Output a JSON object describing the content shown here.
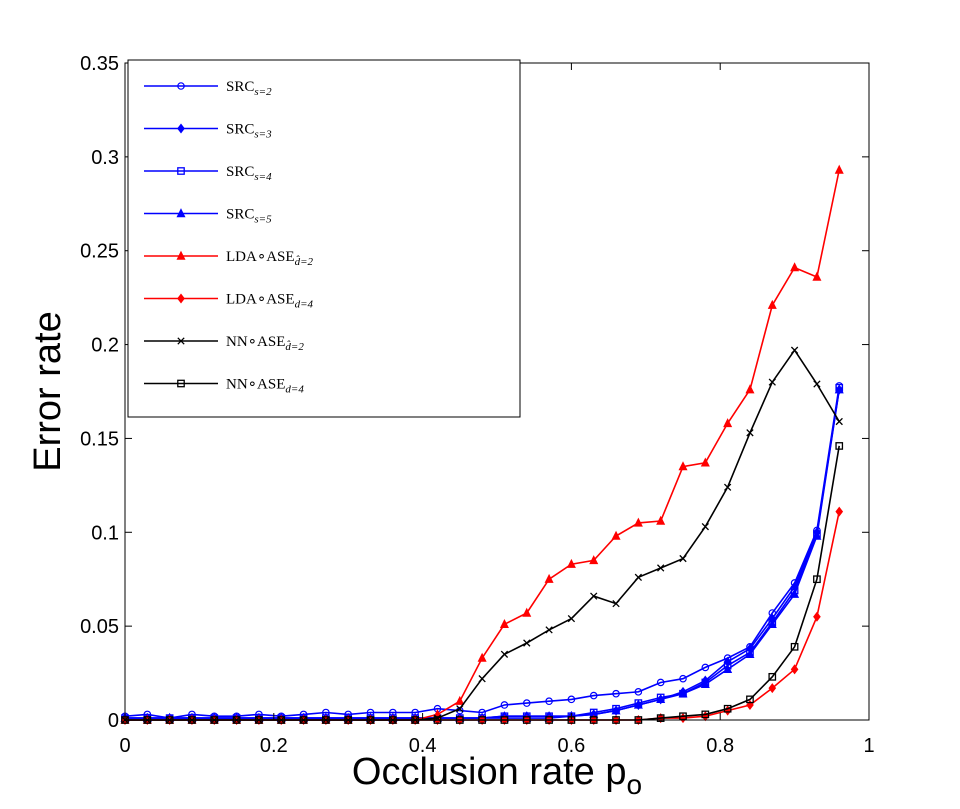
{
  "chart_data": {
    "type": "line",
    "xlabel": "Occlusion rate p",
    "xlabel_sub": "o",
    "ylabel": "Error rate",
    "xlim": [
      0,
      1
    ],
    "ylim": [
      0,
      0.35
    ],
    "xticks": [
      0,
      0.2,
      0.4,
      0.6,
      0.8,
      1
    ],
    "xtick_labels": [
      "0",
      "0.2",
      "0.4",
      "0.6",
      "0.8",
      "1"
    ],
    "yticks": [
      0,
      0.05,
      0.1,
      0.15,
      0.2,
      0.25,
      0.3,
      0.35
    ],
    "ytick_labels": [
      "0",
      "0.05",
      "0.1",
      "0.15",
      "0.2",
      "0.25",
      "0.3",
      "0.35"
    ],
    "legend_position": "top-left",
    "grid": false,
    "x": [
      0,
      0.03,
      0.06,
      0.09,
      0.12,
      0.15,
      0.18,
      0.21,
      0.24,
      0.27,
      0.3,
      0.33,
      0.36,
      0.39,
      0.42,
      0.45,
      0.48,
      0.51,
      0.54,
      0.57,
      0.6,
      0.63,
      0.66,
      0.69,
      0.72,
      0.75,
      0.78,
      0.81,
      0.84,
      0.87,
      0.9,
      0.93,
      0.96
    ],
    "series": [
      {
        "name": "SRC",
        "name_sub": "s=2",
        "color": "#0000ff",
        "marker": "circle",
        "values": [
          0.002,
          0.003,
          0.001,
          0.003,
          0.002,
          0.002,
          0.003,
          0.002,
          0.003,
          0.004,
          0.003,
          0.004,
          0.004,
          0.004,
          0.006,
          0.005,
          0.004,
          0.008,
          0.009,
          0.01,
          0.011,
          0.013,
          0.014,
          0.015,
          0.02,
          0.022,
          0.028,
          0.033,
          0.039,
          0.057,
          0.073,
          0.101,
          0.178
        ]
      },
      {
        "name": "SRC",
        "name_sub": "s=3",
        "color": "#0000ff",
        "marker": "diamond",
        "values": [
          0.001,
          0.001,
          0.001,
          0.001,
          0.001,
          0.001,
          0.001,
          0.001,
          0.001,
          0.001,
          0.001,
          0.001,
          0.001,
          0.001,
          0.001,
          0.001,
          0.001,
          0.002,
          0.002,
          0.002,
          0.002,
          0.003,
          0.005,
          0.008,
          0.011,
          0.015,
          0.021,
          0.031,
          0.038,
          0.054,
          0.071,
          0.1,
          0.176
        ]
      },
      {
        "name": "SRC",
        "name_sub": "s=4",
        "color": "#0000ff",
        "marker": "square",
        "values": [
          0.001,
          0.001,
          0.001,
          0.001,
          0.001,
          0.001,
          0.001,
          0.001,
          0.001,
          0.001,
          0.001,
          0.001,
          0.001,
          0.001,
          0.001,
          0.001,
          0.001,
          0.002,
          0.002,
          0.002,
          0.002,
          0.004,
          0.006,
          0.009,
          0.012,
          0.014,
          0.02,
          0.029,
          0.036,
          0.052,
          0.069,
          0.099,
          0.177
        ]
      },
      {
        "name": "SRC",
        "name_sub": "s=5",
        "color": "#0000ff",
        "marker": "triangle",
        "values": [
          0.001,
          0.001,
          0.001,
          0.001,
          0.001,
          0.001,
          0.001,
          0.001,
          0.001,
          0.001,
          0.001,
          0.001,
          0.001,
          0.001,
          0.001,
          0.001,
          0.001,
          0.001,
          0.001,
          0.001,
          0.002,
          0.003,
          0.005,
          0.008,
          0.011,
          0.014,
          0.019,
          0.027,
          0.035,
          0.051,
          0.067,
          0.098,
          0.176
        ]
      },
      {
        "name": "LDA∘ASE",
        "name_sub": "d̂=2",
        "color": "#ff0000",
        "marker": "triangle",
        "values": [
          0,
          0,
          0,
          0,
          0,
          0,
          0,
          0,
          0,
          0,
          0,
          0,
          0,
          0,
          0.003,
          0.01,
          0.033,
          0.051,
          0.057,
          0.075,
          0.083,
          0.085,
          0.098,
          0.105,
          0.106,
          0.135,
          0.137,
          0.158,
          0.176,
          0.221,
          0.241,
          0.236,
          0.293
        ]
      },
      {
        "name": "LDA∘ASE",
        "name_sub": "d=4",
        "color": "#ff0000",
        "marker": "diamond",
        "values": [
          0,
          0,
          0,
          0,
          0,
          0,
          0,
          0,
          0,
          0,
          0,
          0,
          0,
          0,
          0,
          0,
          0,
          0,
          0,
          0,
          0,
          0,
          0,
          0,
          0.001,
          0.001,
          0.002,
          0.005,
          0.008,
          0.017,
          0.027,
          0.055,
          0.111
        ]
      },
      {
        "name": "NN∘ASE",
        "name_sub": "d̂=2",
        "color": "#000000",
        "marker": "x",
        "values": [
          0,
          0,
          0,
          0,
          0,
          0,
          0,
          0,
          0,
          0,
          0,
          0,
          0,
          0,
          0.001,
          0.006,
          0.022,
          0.035,
          0.041,
          0.048,
          0.054,
          0.066,
          0.062,
          0.076,
          0.081,
          0.086,
          0.103,
          0.124,
          0.153,
          0.18,
          0.197,
          0.179,
          0.159
        ]
      },
      {
        "name": "NN∘ASE",
        "name_sub": "d=4",
        "color": "#000000",
        "marker": "square",
        "values": [
          0,
          0,
          0,
          0,
          0,
          0,
          0,
          0,
          0,
          0,
          0,
          0,
          0,
          0,
          0,
          0,
          0,
          0,
          0,
          0,
          0,
          0,
          0,
          0,
          0.001,
          0.002,
          0.003,
          0.006,
          0.011,
          0.023,
          0.039,
          0.075,
          0.146
        ]
      }
    ]
  }
}
